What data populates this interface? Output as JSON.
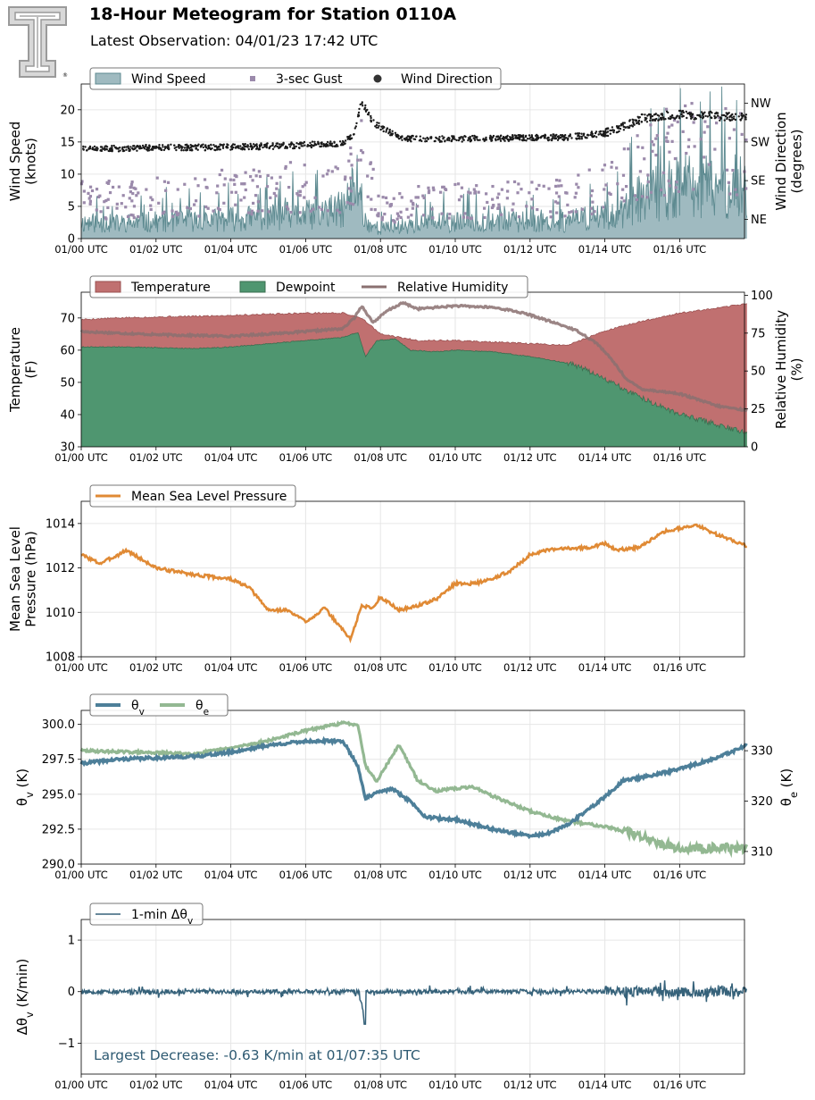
{
  "header": {
    "title": "18-Hour Meteogram for Station 0110A",
    "subtitle": "Latest Observation: 04/01/23 17:42 UTC",
    "logo_icon": "texas-tech-double-t-logo"
  },
  "colors": {
    "wind_fill": "#9fbac0",
    "wind_line": "#5d8a90",
    "gust": "#9b8aab",
    "direction": "#1a1a1a",
    "temperature": "#c07070",
    "dewpoint": "#4f9670",
    "humidity": "#8a7070",
    "pressure": "#e08a35",
    "theta_v": "#4d7f99",
    "theta_e": "#93b892",
    "dtheta": "#36627a",
    "annotation": "#2e5a72",
    "grid": "#e6e6e6"
  },
  "chart_data": [
    {
      "type": "area",
      "id": "wind",
      "xlabel": "",
      "ylabel": "Wind Speed\n(knots)",
      "ylabel_right": "Wind Direction\n(degrees)",
      "x_tick_labels": [
        "01/00 UTC",
        "01/02 UTC",
        "01/04 UTC",
        "01/06 UTC",
        "01/08 UTC",
        "01/10 UTC",
        "01/12 UTC",
        "01/14 UTC",
        "01/16 UTC"
      ],
      "x_range_hours": [
        0,
        17.8
      ],
      "ylim": [
        0,
        24
      ],
      "y_ticks": [
        0,
        5,
        10,
        15,
        20
      ],
      "ylim_right_deg": [
        0,
        360
      ],
      "y_ticks_right": [
        {
          "label": "NE",
          "deg": 45
        },
        {
          "label": "SE",
          "deg": 135
        },
        {
          "label": "SW",
          "deg": 225
        },
        {
          "label": "NW",
          "deg": 315
        }
      ],
      "legend": [
        "Wind Speed",
        "3-sec Gust",
        "Wind Direction"
      ],
      "legend_location": "top-left",
      "grid": true,
      "series": [
        {
          "name": "Wind Speed",
          "style": "area",
          "x": [
            0,
            1,
            2,
            3,
            4,
            5,
            6,
            7,
            7.4,
            7.6,
            8,
            9,
            10,
            11,
            12,
            13,
            13.5,
            14,
            14.5,
            15,
            16,
            17,
            17.8
          ],
          "y": [
            2.5,
            2.3,
            2.6,
            2.7,
            3.0,
            3.3,
            3.6,
            4.5,
            9.0,
            2.5,
            1.5,
            2.3,
            2.5,
            2.8,
            2.5,
            2.6,
            3.2,
            3.6,
            4.2,
            6.5,
            8.0,
            7.8,
            8.0
          ]
        },
        {
          "name": "3-sec Gust",
          "style": "scatter",
          "x": [
            0,
            1,
            2,
            3,
            4,
            5,
            6,
            7,
            7.5,
            8,
            9,
            10,
            11,
            12,
            13,
            14,
            15,
            16,
            17,
            17.8
          ],
          "y": [
            7,
            6.5,
            7,
            7.5,
            8,
            8.5,
            9,
            9,
            14,
            5,
            6,
            6.5,
            7,
            6.5,
            7,
            9,
            13,
            16,
            15,
            15
          ]
        },
        {
          "name": "Wind Direction",
          "style": "scatter",
          "unit": "degrees",
          "x": [
            0,
            1,
            2,
            3,
            4,
            5,
            6,
            7,
            7.3,
            7.5,
            7.8,
            8.5,
            9,
            10,
            11,
            12,
            13,
            14,
            14.5,
            15,
            16,
            17,
            17.8
          ],
          "y": [
            210,
            210,
            212,
            212,
            213,
            215,
            218,
            222,
            245,
            320,
            270,
            235,
            232,
            232,
            234,
            235,
            236,
            245,
            260,
            280,
            290,
            285,
            283
          ]
        }
      ]
    },
    {
      "type": "area",
      "id": "thermo",
      "xlabel": "",
      "ylabel": "Temperature\n(F)",
      "ylabel_right": "Relative Humidity\n(%)",
      "x_tick_labels": [
        "01/00 UTC",
        "01/02 UTC",
        "01/04 UTC",
        "01/06 UTC",
        "01/08 UTC",
        "01/10 UTC",
        "01/12 UTC",
        "01/14 UTC",
        "01/16 UTC"
      ],
      "x_range_hours": [
        0,
        17.8
      ],
      "ylim": [
        30,
        78
      ],
      "y_ticks": [
        30,
        40,
        50,
        60,
        70
      ],
      "ylim_right": [
        0,
        102
      ],
      "y_ticks_right": [
        0,
        25,
        50,
        75,
        100
      ],
      "legend": [
        "Temperature",
        "Dewpoint",
        "Relative Humidity"
      ],
      "legend_location": "top-left",
      "grid": true,
      "series": [
        {
          "name": "Temperature",
          "style": "area",
          "x": [
            0,
            1,
            2,
            3,
            4,
            5,
            6,
            7,
            7.5,
            8,
            9,
            10,
            11,
            12,
            13,
            14,
            15,
            16,
            17,
            17.8
          ],
          "y": [
            69.5,
            70,
            70.3,
            70.5,
            70.8,
            71.2,
            71.5,
            71.5,
            70,
            65,
            63,
            63,
            62.5,
            62,
            61.5,
            66,
            69,
            71.5,
            73,
            74.5
          ]
        },
        {
          "name": "Dewpoint",
          "style": "area",
          "x": [
            0,
            1,
            2,
            3,
            4,
            5,
            6,
            7,
            7.4,
            7.6,
            7.9,
            8.4,
            8.8,
            9.5,
            10,
            11,
            12,
            13,
            13.5,
            14,
            15,
            16,
            17,
            17.8
          ],
          "y": [
            61,
            61,
            60.8,
            60.5,
            61,
            62,
            63,
            64,
            65.5,
            58,
            63,
            63.5,
            60,
            59.5,
            60,
            59.5,
            58,
            56,
            54,
            51,
            45,
            40,
            37,
            34
          ]
        },
        {
          "name": "Relative Humidity",
          "style": "line",
          "unit": "%",
          "x": [
            0,
            1,
            2,
            3,
            4,
            5,
            6,
            7,
            7.3,
            7.5,
            7.8,
            8.2,
            8.6,
            9,
            10,
            11,
            11.5,
            12,
            13,
            13.3,
            13.8,
            14.2,
            14.6,
            15,
            16,
            17,
            17.8
          ],
          "y": [
            76,
            75,
            74,
            73.5,
            73,
            74.5,
            76,
            78,
            85,
            93,
            82,
            90,
            95,
            91,
            93,
            92,
            90,
            87,
            79,
            76,
            68,
            57,
            44,
            38,
            35,
            27,
            24
          ]
        }
      ]
    },
    {
      "type": "line",
      "id": "pressure",
      "xlabel": "",
      "ylabel": "Mean Sea Level\nPressure (hPa)",
      "x_tick_labels": [
        "01/00 UTC",
        "01/02 UTC",
        "01/04 UTC",
        "01/06 UTC",
        "01/08 UTC",
        "01/10 UTC",
        "01/12 UTC",
        "01/14 UTC",
        "01/16 UTC"
      ],
      "x_range_hours": [
        0,
        17.8
      ],
      "ylim": [
        1008,
        1015
      ],
      "y_ticks": [
        1008,
        1010,
        1012,
        1014
      ],
      "legend": [
        "Mean Sea Level Pressure"
      ],
      "legend_location": "top-left",
      "grid": true,
      "series": [
        {
          "name": "Mean Sea Level Pressure",
          "x": [
            0,
            0.5,
            1,
            1.2,
            2,
            3,
            4,
            4.5,
            5,
            5.5,
            6,
            6.2,
            6.5,
            7,
            7.2,
            7.5,
            7.8,
            8,
            8.5,
            9,
            9.5,
            10,
            10.5,
            11,
            11.5,
            12,
            12.5,
            13,
            13.5,
            14,
            14.3,
            14.8,
            15,
            15.5,
            16,
            16.5,
            17,
            17.8
          ],
          "y": [
            1012.6,
            1012.2,
            1012.6,
            1012.8,
            1012.0,
            1011.7,
            1011.5,
            1011.1,
            1010.1,
            1010.1,
            1009.6,
            1009.8,
            1010.2,
            1009.2,
            1008.8,
            1010.3,
            1010.2,
            1010.7,
            1010.1,
            1010.3,
            1010.6,
            1011.3,
            1011.3,
            1011.5,
            1011.9,
            1012.6,
            1012.8,
            1012.9,
            1012.9,
            1013.1,
            1012.8,
            1012.9,
            1013.0,
            1013.6,
            1013.8,
            1013.9,
            1013.5,
            1013.0
          ]
        }
      ]
    },
    {
      "type": "line",
      "id": "theta",
      "xlabel": "",
      "ylabel": "θv (K)",
      "ylabel_right": "θe (K)",
      "x_tick_labels": [
        "01/00 UTC",
        "01/02 UTC",
        "01/04 UTC",
        "01/06 UTC",
        "01/08 UTC",
        "01/10 UTC",
        "01/12 UTC",
        "01/14 UTC",
        "01/16 UTC"
      ],
      "x_range_hours": [
        0,
        17.8
      ],
      "ylim": [
        290,
        301
      ],
      "y_ticks": [
        290.0,
        292.5,
        295.0,
        297.5,
        300.0
      ],
      "y_tick_labels": [
        "290.0",
        "292.5",
        "295.0",
        "297.5",
        "300.0"
      ],
      "ylim_right": [
        307.5,
        338
      ],
      "y_ticks_right": [
        310,
        320,
        330
      ],
      "legend": [
        "θv",
        "θe"
      ],
      "legend_location": "top-left",
      "grid": true,
      "series": [
        {
          "name": "θv",
          "axis": "left",
          "x": [
            0,
            1,
            2,
            3,
            4,
            5,
            6,
            7,
            7.4,
            7.6,
            7.9,
            8.3,
            8.8,
            9.2,
            9.7,
            10,
            11,
            12,
            12.5,
            13,
            13.5,
            14,
            14.5,
            15,
            16,
            17,
            17.8
          ],
          "y": [
            297.2,
            297.5,
            297.6,
            297.7,
            298.0,
            298.5,
            298.8,
            298.8,
            297,
            294.7,
            295.1,
            295.4,
            294.5,
            293.4,
            293.2,
            293.2,
            292.5,
            292.0,
            292.2,
            292.8,
            293.8,
            294.8,
            296.0,
            296.2,
            296.8,
            297.6,
            298.5
          ]
        },
        {
          "name": "θe",
          "axis": "right",
          "x": [
            0,
            1,
            2,
            3,
            4,
            5,
            6,
            7,
            7.4,
            7.6,
            7.9,
            8.5,
            9,
            9.5,
            10,
            10.5,
            11,
            12,
            13,
            14,
            15,
            16,
            17,
            17.8
          ],
          "y": [
            330,
            329.8,
            329.6,
            329.4,
            330.5,
            332,
            334,
            335.5,
            335.2,
            327,
            324,
            331.2,
            324,
            322,
            322.5,
            322.8,
            321,
            318,
            316,
            315,
            313,
            310.5,
            310.8,
            310.5
          ]
        }
      ]
    },
    {
      "type": "line",
      "id": "dtheta",
      "xlabel": "",
      "ylabel": "Δθv (K/min)",
      "x_tick_labels": [
        "01/00 UTC",
        "01/02 UTC",
        "01/04 UTC",
        "01/06 UTC",
        "01/08 UTC",
        "01/10 UTC",
        "01/12 UTC",
        "01/14 UTC",
        "01/16 UTC"
      ],
      "x_range_hours": [
        0,
        17.8
      ],
      "ylim": [
        -1.6,
        1.4
      ],
      "y_ticks": [
        -1,
        0,
        1
      ],
      "y_tick_labels": [
        "−1",
        "0",
        "1"
      ],
      "legend": [
        "1-min Δθv"
      ],
      "legend_location": "top-left",
      "grid": true,
      "annotation": "Largest Decrease: -0.63 K/min at 01/07:35 UTC",
      "series": [
        {
          "name": "1-min Δθv",
          "x": [
            0,
            2,
            4,
            6,
            7,
            7.5,
            7.583,
            7.7,
            8,
            10,
            12,
            13,
            14,
            15,
            16,
            17,
            17.8
          ],
          "y": [
            0,
            0,
            0,
            0,
            0,
            -0.2,
            -0.63,
            0.1,
            0,
            0,
            0,
            0,
            0.05,
            0,
            0,
            0,
            0
          ]
        }
      ]
    }
  ]
}
